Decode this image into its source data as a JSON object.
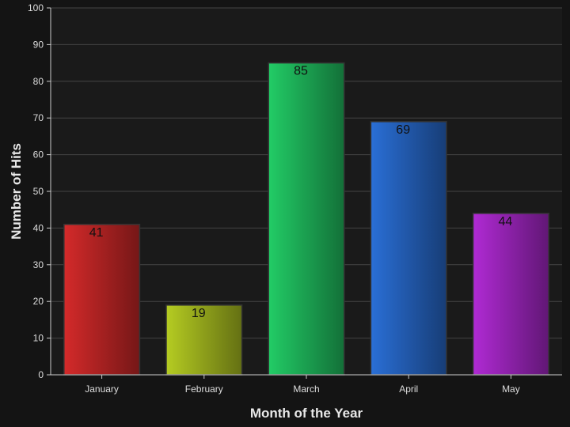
{
  "chart_data": {
    "type": "bar",
    "title": "",
    "xlabel": "Month of the Year",
    "ylabel": "Number of Hits",
    "categories": [
      "January",
      "February",
      "March",
      "April",
      "May"
    ],
    "values": [
      41,
      19,
      85,
      69,
      44
    ],
    "ylim": [
      0,
      100
    ],
    "yticks": [
      0,
      10,
      20,
      30,
      40,
      50,
      60,
      70,
      80,
      90,
      100
    ],
    "grid": true,
    "legend": "none",
    "bar_colors": [
      "#d42a2a",
      "#b5cc22",
      "#22cc66",
      "#2a6fd6",
      "#b02ad4"
    ],
    "background_color": "#141414",
    "plot_background_color": "#1a1a1a",
    "grid_color": "#444444"
  }
}
